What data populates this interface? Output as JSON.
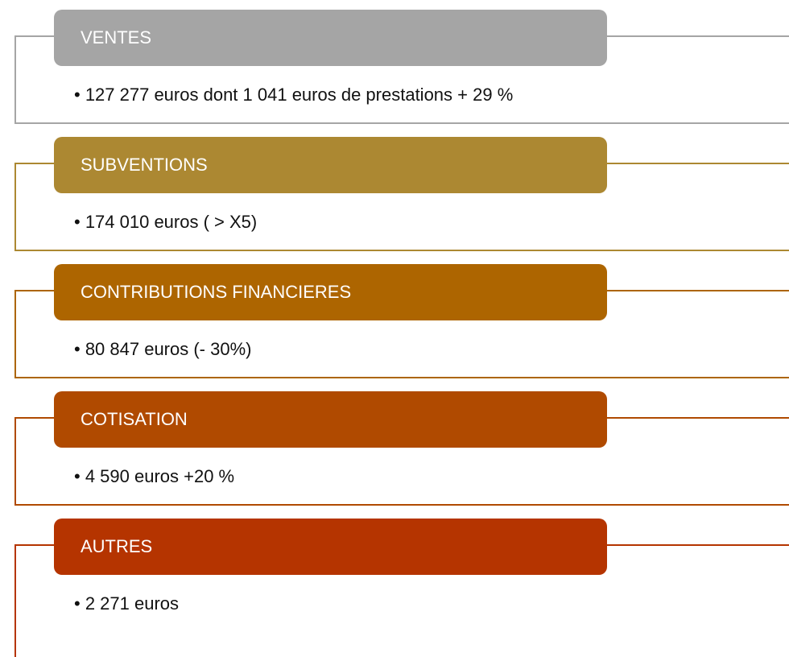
{
  "items": [
    {
      "title": "VENTES",
      "text": "• 127 277 euros dont 1 041 euros de prestations + 29 %"
    },
    {
      "title": "SUBVENTIONS",
      "text": "• 174 010 euros ( > X5)"
    },
    {
      "title": "CONTRIBUTIONS FINANCIERES",
      "text": "• 80 847 euros (- 30%)"
    },
    {
      "title": "COTISATION",
      "text": "• 4 590 euros  +20 %"
    },
    {
      "title": "AUTRES",
      "text": "• 2 271 euros"
    }
  ]
}
